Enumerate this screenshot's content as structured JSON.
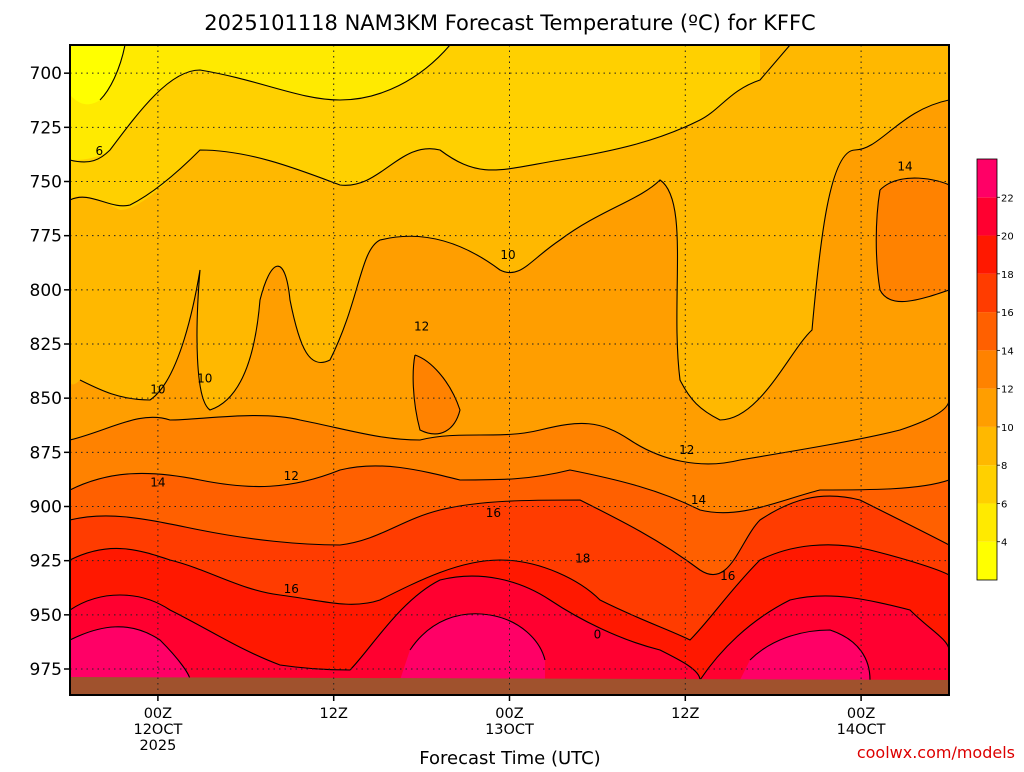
{
  "chart_data": {
    "type": "heatmap",
    "title": "2025101118 NAM3KM Forecast Temperature (ºC) for KFFC",
    "xlabel": "Forecast Time (UTC)",
    "ylabel": "",
    "y_ticks": [
      700,
      725,
      750,
      775,
      800,
      825,
      850,
      875,
      900,
      925,
      950,
      975
    ],
    "x_ticks": [
      {
        "hours": 6,
        "lines": [
          "00Z",
          "12OCT",
          "2025"
        ]
      },
      {
        "hours": 18,
        "lines": [
          "12Z"
        ]
      },
      {
        "hours": 30,
        "lines": [
          "00Z",
          "13OCT"
        ]
      },
      {
        "hours": 42,
        "lines": [
          "12Z"
        ]
      },
      {
        "hours": 54,
        "lines": [
          "00Z",
          "14OCT"
        ]
      }
    ],
    "xlim_hours": [
      0,
      60
    ],
    "ylim_hpa": [
      687,
      987
    ],
    "grid": true,
    "colorbar": {
      "levels": [
        4,
        6,
        8,
        10,
        12,
        14,
        16,
        18,
        20,
        22
      ],
      "tick_labels": [
        "4",
        "6",
        "8",
        "10",
        "12",
        "14",
        "16",
        "18",
        "20",
        "22"
      ],
      "colors": [
        "#ffff00",
        "#ffea00",
        "#ffd000",
        "#ffb800",
        "#ff9e00",
        "#ff8200",
        "#ff6000",
        "#ff3c00",
        "#ff1800",
        "#ff0030",
        "#ff0066"
      ]
    },
    "contour_labels": [
      {
        "text": "6",
        "hours": 2.0,
        "hpa": 736
      },
      {
        "text": "10",
        "hours": 29.9,
        "hpa": 784
      },
      {
        "text": "12",
        "hours": 24.0,
        "hpa": 817
      },
      {
        "text": "10",
        "hours": 9.2,
        "hpa": 841
      },
      {
        "text": "10",
        "hours": 6.0,
        "hpa": 846
      },
      {
        "text": "14",
        "hours": 57.0,
        "hpa": 743
      },
      {
        "text": "12",
        "hours": 15.1,
        "hpa": 886
      },
      {
        "text": "12",
        "hours": 42.1,
        "hpa": 874
      },
      {
        "text": "14",
        "hours": 6.0,
        "hpa": 889
      },
      {
        "text": "14",
        "hours": 42.9,
        "hpa": 897
      },
      {
        "text": "16",
        "hours": 28.9,
        "hpa": 903
      },
      {
        "text": "18",
        "hours": 35.0,
        "hpa": 924
      },
      {
        "text": "16",
        "hours": 15.1,
        "hpa": 938
      },
      {
        "text": "16",
        "hours": 44.9,
        "hpa": 932
      },
      {
        "text": "0",
        "hours": 36.0,
        "hpa": 959
      }
    ]
  },
  "credit": "coolwx.com/models"
}
